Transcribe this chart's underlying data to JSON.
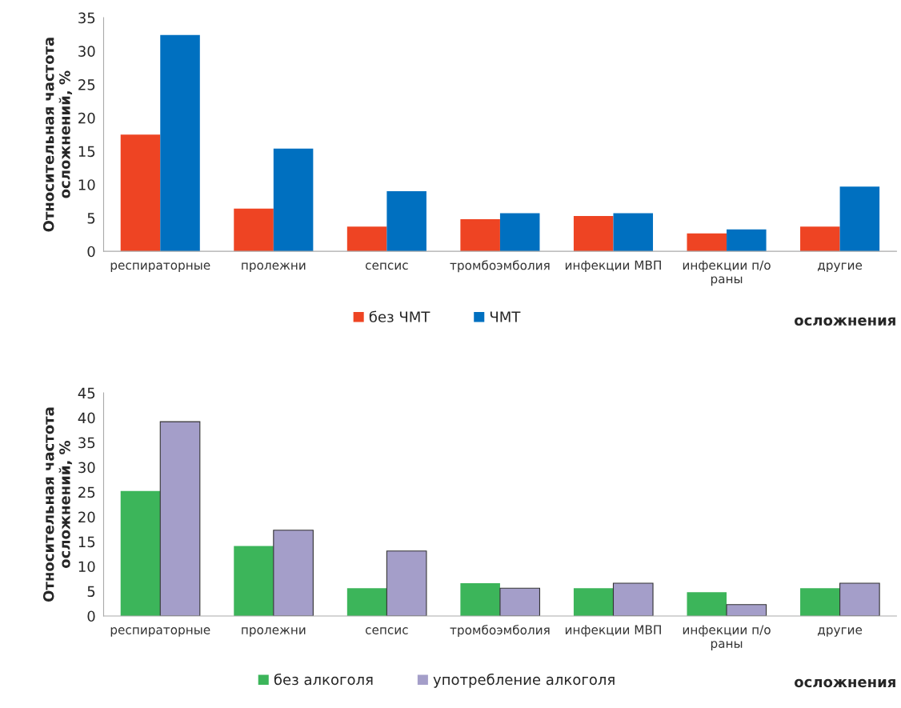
{
  "chart_data": [
    {
      "type": "bar",
      "ylabel": "Относительная частота\nосложнений, %",
      "xlabel": "осложнения",
      "categories": [
        "респираторные",
        "пролежни",
        "сепсис",
        "тромбоэмболия",
        "инфекции МВП",
        "инфекции п/о\nраны",
        "другие"
      ],
      "series": [
        {
          "name": "без ЧМТ",
          "color": "#ee4423",
          "values": [
            17.5,
            6.4,
            3.7,
            4.8,
            5.3,
            2.7,
            3.7
          ]
        },
        {
          "name": "ЧМТ",
          "color": "#0070c0",
          "values": [
            32.4,
            15.4,
            9.0,
            5.7,
            5.7,
            3.3,
            9.7
          ]
        }
      ],
      "ylim": [
        0,
        35
      ],
      "yticks": [
        0,
        5,
        10,
        15,
        20,
        25,
        30,
        35
      ],
      "grid": false,
      "legend": "bottom"
    },
    {
      "type": "bar",
      "ylabel": "Относительная частота\nосложнений, %",
      "xlabel": "осложнения",
      "categories": [
        "респираторные",
        "пролежни",
        "сепсис",
        "тромбоэмболия",
        "инфекции МВП",
        "инфекции п/о\nраны",
        "другие"
      ],
      "series": [
        {
          "name": "без алкоголя",
          "color": "#3cb55a",
          "values": [
            25.2,
            14.1,
            5.6,
            6.6,
            5.6,
            4.8,
            5.6
          ]
        },
        {
          "name": "употребление алкоголя",
          "color": "#a49ec9",
          "values": [
            39.2,
            17.3,
            13.1,
            5.6,
            6.6,
            2.3,
            6.6
          ]
        }
      ],
      "ylim": [
        0,
        45
      ],
      "yticks": [
        0,
        5,
        10,
        15,
        20,
        25,
        30,
        35,
        40,
        45
      ],
      "grid": false,
      "legend": "bottom"
    }
  ]
}
